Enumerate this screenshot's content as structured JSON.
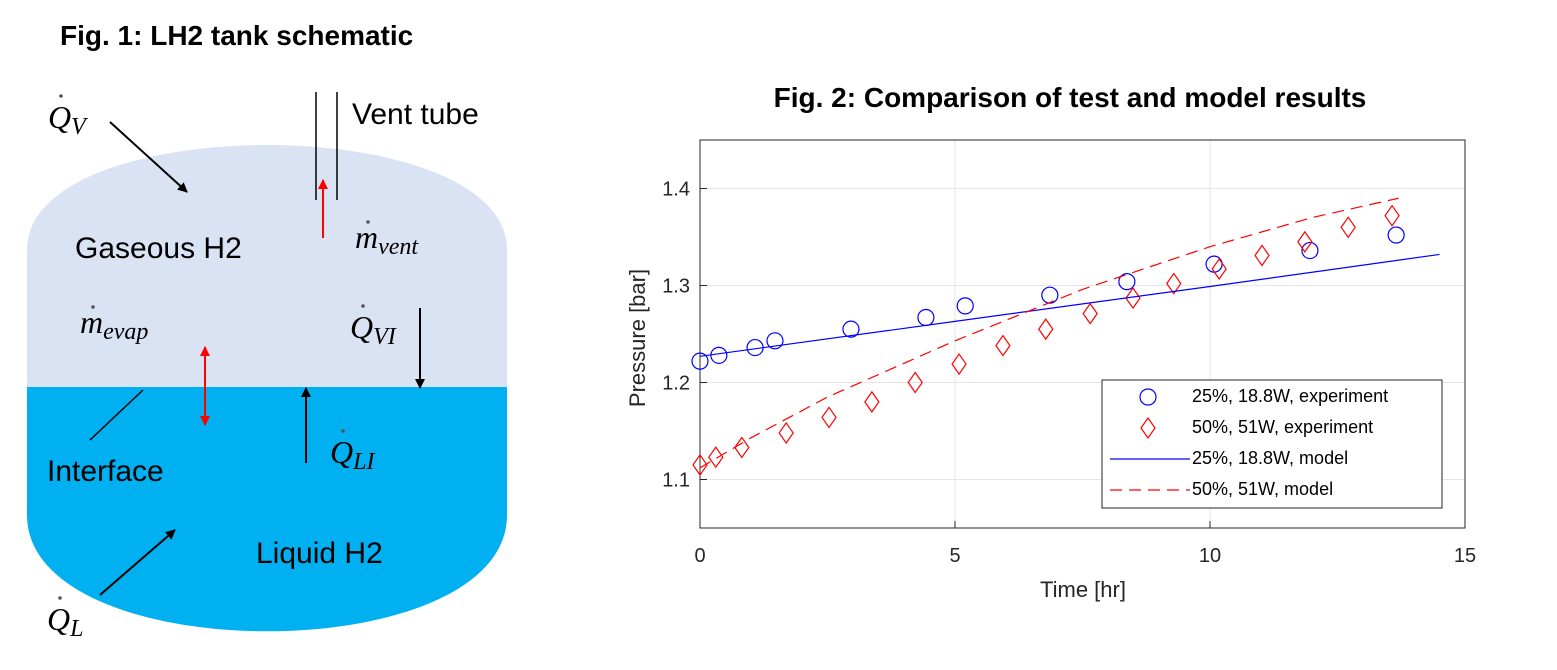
{
  "diagram": {
    "title": "Fig. 1: LH2 tank schematic",
    "labels": [
      "Vent tube",
      "Gaseous H2",
      "Interface",
      "Liquid H2"
    ],
    "symbols": [
      {
        "symbol": "Q",
        "subscript": "V"
      },
      {
        "symbol": "m",
        "subscript": "vent"
      },
      {
        "symbol": "m",
        "subscript": "evap"
      },
      {
        "symbol": "Q",
        "subscript": "VI"
      },
      {
        "symbol": "Q",
        "subscript": "LI"
      },
      {
        "symbol": "Q",
        "subscript": "L"
      }
    ]
  },
  "chart_data": {
    "type": "line",
    "title": "Fig. 2: Comparison of test and model results",
    "xlabel": "Time [hr]",
    "ylabel": "Pressure [bar]",
    "xlim": [
      0,
      15
    ],
    "ylim": [
      1.05,
      1.45
    ],
    "xticks": [
      0,
      5,
      10,
      15
    ],
    "yticks": [
      1.1,
      1.2,
      1.3,
      1.4
    ],
    "grid": true,
    "legend": "lower right",
    "series": [
      {
        "name": "25%, 18.8W, experiment",
        "color": "#0000ff",
        "mode": "markers",
        "marker": "circle",
        "x": [
          0,
          0.37,
          1.08,
          1.47,
          2.96,
          4.43,
          5.2,
          6.86,
          8.37,
          10.08,
          11.96,
          13.65
        ],
        "values": [
          1.222,
          1.228,
          1.236,
          1.243,
          1.255,
          1.267,
          1.279,
          1.29,
          1.304,
          1.322,
          1.336,
          1.352
        ]
      },
      {
        "name": "50%, 51W, experiment",
        "color": "#ff0000",
        "mode": "markers",
        "marker": "diamond",
        "x": [
          0,
          0.31,
          0.82,
          1.69,
          2.53,
          3.37,
          4.22,
          5.08,
          5.94,
          6.78,
          7.65,
          8.49,
          9.29,
          10.18,
          11.02,
          11.86,
          12.71,
          13.57
        ],
        "values": [
          1.115,
          1.123,
          1.133,
          1.148,
          1.164,
          1.18,
          1.2,
          1.219,
          1.238,
          1.255,
          1.271,
          1.287,
          1.302,
          1.317,
          1.331,
          1.345,
          1.36,
          1.372
        ]
      },
      {
        "name": "25%, 18.8W, model",
        "color": "#0000ff",
        "mode": "line",
        "dash": false,
        "x": [
          0,
          5,
          10,
          14.5
        ],
        "values": [
          1.227,
          1.263,
          1.299,
          1.332
        ]
      },
      {
        "name": "50%, 51W, model",
        "color": "#ff0000",
        "mode": "line",
        "dash": true,
        "x": [
          0,
          1,
          2.5,
          5,
          7.5,
          10,
          12,
          13.7
        ],
        "values": [
          1.112,
          1.143,
          1.185,
          1.243,
          1.296,
          1.34,
          1.37,
          1.39
        ]
      }
    ]
  }
}
